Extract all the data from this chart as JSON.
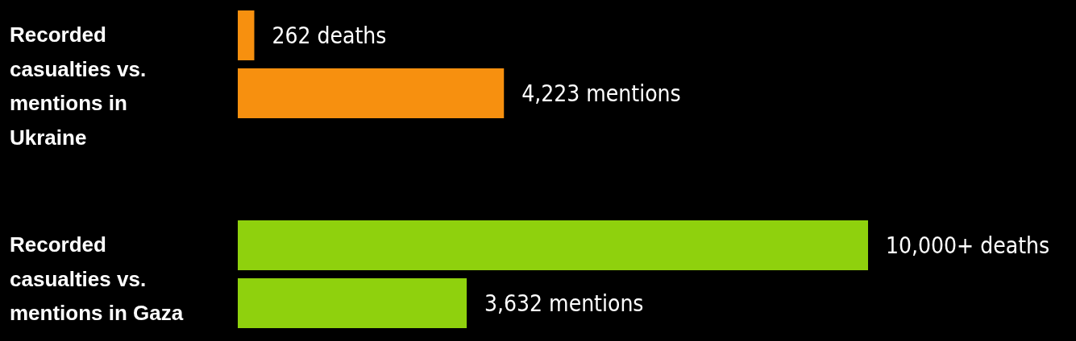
{
  "chart_data": [
    {
      "type": "bar",
      "orientation": "horizontal",
      "title": "Recorded casualties vs. mentions in Ukraine",
      "categories": [
        null,
        null
      ],
      "values": [
        262,
        4223
      ],
      "value_labels": [
        "262 deaths",
        "4,223 mentions"
      ],
      "color": "#f7900f"
    },
    {
      "type": "bar",
      "orientation": "horizontal",
      "title": "Recorded casualties vs. mentions in Gaza",
      "categories": [
        null,
        null
      ],
      "values": [
        10000,
        3632
      ],
      "value_labels": [
        "10,000+ deaths",
        "3,632 mentions"
      ],
      "color": "#8fd10d"
    }
  ]
}
